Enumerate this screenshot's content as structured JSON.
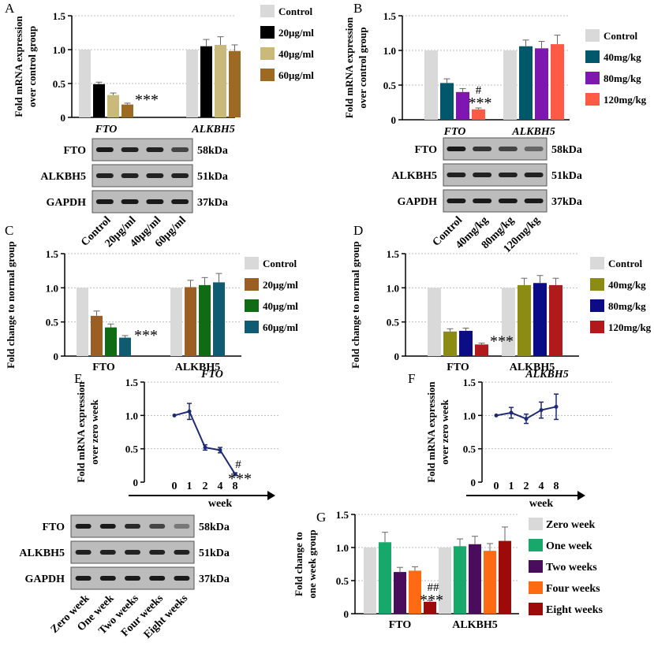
{
  "panel_letters": [
    "A",
    "B",
    "C",
    "D",
    "E",
    "F",
    "G"
  ],
  "colors": {
    "control": "#d9d9d9",
    "black": "#000000",
    "khaki": "#c9b97a",
    "brown_a": "#9c6a22",
    "teal": "#00586a",
    "purple": "#7f16b0",
    "salmon": "#ff5a45",
    "brown_c": "#9b5f23",
    "green_c": "#0f6b14",
    "teal_c": "#0e5b72",
    "olive": "#8c8c14",
    "navy": "#0c0c84",
    "darkred": "#b11a1a",
    "line_blue": "#1d2a73",
    "green_g": "#17a86b",
    "purple_g": "#4a0d5e",
    "orange_g": "#ff6a12",
    "red_g": "#9c0a0a"
  },
  "chart_data": [
    {
      "panel": "A",
      "type": "bar",
      "ylabel_lines": [
        "Fold mRNA expression",
        "over control group"
      ],
      "ylim": [
        0,
        1.5
      ],
      "yticks": [
        "0",
        "0.5",
        "1.0",
        "1.5"
      ],
      "categories": [
        "FTO",
        "ALKBH5"
      ],
      "series": [
        {
          "name": "Control",
          "values": [
            1.0,
            1.0
          ],
          "errors": [
            0,
            0
          ]
        },
        {
          "name": "20μg/ml",
          "values": [
            0.49,
            1.05
          ],
          "errors": [
            0.03,
            0.1
          ]
        },
        {
          "name": "40μg/ml",
          "values": [
            0.33,
            1.07
          ],
          "errors": [
            0.03,
            0.12
          ]
        },
        {
          "name": "60μg/ml",
          "values": [
            0.19,
            0.98
          ],
          "errors": [
            0.02,
            0.09
          ]
        }
      ],
      "annotations": [
        "***"
      ],
      "blot": {
        "rows": [
          "FTO",
          "ALKBH5",
          "GAPDH"
        ],
        "sizes": [
          "58kDa",
          "51kDa",
          "37kDa"
        ],
        "lanes": [
          "Control",
          "20μg/ml",
          "40μg/ml",
          "60μg/ml"
        ]
      }
    },
    {
      "panel": "B",
      "type": "bar",
      "ylabel_lines": [
        "Fold mRNA expression",
        "over control group"
      ],
      "ylim": [
        0,
        1.5
      ],
      "yticks": [
        "0",
        "0.5",
        "1.0",
        "1.5"
      ],
      "categories": [
        "FTO",
        "ALKBH5"
      ],
      "series": [
        {
          "name": "Control",
          "values": [
            1.0,
            1.0
          ],
          "errors": [
            0,
            0
          ]
        },
        {
          "name": "40mg/kg",
          "values": [
            0.53,
            1.06
          ],
          "errors": [
            0.06,
            0.09
          ]
        },
        {
          "name": "80mg/kg",
          "values": [
            0.4,
            1.03
          ],
          "errors": [
            0.05,
            0.1
          ]
        },
        {
          "name": "120mg/kg",
          "values": [
            0.15,
            1.09
          ],
          "errors": [
            0.02,
            0.13
          ]
        }
      ],
      "annotations": [
        "#",
        "***"
      ],
      "blot": {
        "rows": [
          "FTO",
          "ALKBH5",
          "GAPDH"
        ],
        "sizes": [
          "58kDa",
          "51kDa",
          "37kDa"
        ],
        "lanes": [
          "Control",
          "40mg/kg",
          "80mg/kg",
          "120mg/kg"
        ]
      }
    },
    {
      "panel": "C",
      "type": "bar",
      "ylabel_lines": [
        "Fold change to normal group"
      ],
      "ylim": [
        0,
        1.5
      ],
      "yticks": [
        "0",
        "0.5",
        "1.0",
        "1.5"
      ],
      "categories": [
        "FTO",
        "ALKBH5"
      ],
      "series": [
        {
          "name": "Control",
          "values": [
            1.0,
            1.0
          ],
          "errors": [
            0,
            0
          ]
        },
        {
          "name": "20μg/ml",
          "values": [
            0.59,
            1.01
          ],
          "errors": [
            0.07,
            0.1
          ]
        },
        {
          "name": "40μg/ml",
          "values": [
            0.42,
            1.04
          ],
          "errors": [
            0.05,
            0.11
          ]
        },
        {
          "name": "60μg/ml",
          "values": [
            0.27,
            1.08
          ],
          "errors": [
            0.03,
            0.13
          ]
        }
      ],
      "annotations": [
        "***"
      ]
    },
    {
      "panel": "D",
      "type": "bar",
      "ylabel_lines": [
        "Fold change to normal group"
      ],
      "ylim": [
        0,
        1.5
      ],
      "yticks": [
        "0",
        "0.5",
        "1.0",
        "1.5"
      ],
      "categories": [
        "FTO",
        "ALKBH5"
      ],
      "series": [
        {
          "name": "Control",
          "values": [
            1.0,
            1.0
          ],
          "errors": [
            0,
            0
          ]
        },
        {
          "name": "40mg/kg",
          "values": [
            0.36,
            1.04
          ],
          "errors": [
            0.04,
            0.1
          ]
        },
        {
          "name": "80mg/kg",
          "values": [
            0.37,
            1.07
          ],
          "errors": [
            0.04,
            0.11
          ]
        },
        {
          "name": "120mg/kg",
          "values": [
            0.17,
            1.04
          ],
          "errors": [
            0.02,
            0.1
          ]
        }
      ],
      "annotations": [
        "***"
      ]
    },
    {
      "panel": "E",
      "type": "line",
      "title": "FTO",
      "ylabel_lines": [
        "Fold mRNA expression",
        "over zero week"
      ],
      "xlabel": "week",
      "x": [
        0,
        1,
        2,
        4,
        8
      ],
      "values": [
        1.0,
        1.06,
        0.52,
        0.48,
        0.12
      ],
      "errors": [
        0,
        0.12,
        0.04,
        0.04,
        0.02
      ],
      "ylim": [
        0,
        1.5
      ],
      "yticks": [
        "0",
        "0.5",
        "1.0",
        "1.5"
      ],
      "annotations": [
        "#",
        "***"
      ],
      "blot": {
        "rows": [
          "FTO",
          "ALKBH5",
          "GAPDH"
        ],
        "sizes": [
          "58kDa",
          "51kDa",
          "37kDa"
        ],
        "lanes": [
          "Zero week",
          "One week",
          "Two weeks",
          "Four weeks",
          "Eight weeks"
        ]
      }
    },
    {
      "panel": "F",
      "type": "line",
      "title": "ALKBH5",
      "ylabel_lines": [
        "Fold mRNA expression",
        "over zero week"
      ],
      "xlabel": "week",
      "x": [
        0,
        1,
        2,
        4,
        8
      ],
      "values": [
        1.0,
        1.04,
        0.95,
        1.08,
        1.13
      ],
      "errors": [
        0,
        0.08,
        0.07,
        0.12,
        0.19
      ],
      "ylim": [
        0,
        1.5
      ],
      "yticks": [
        "0",
        "0.5",
        "1.0",
        "1.5"
      ]
    },
    {
      "panel": "G",
      "type": "bar",
      "ylabel_lines": [
        "Fold change to",
        "one week group"
      ],
      "ylim": [
        0,
        1.5
      ],
      "yticks": [
        "0",
        "0.5",
        "1.0",
        "1.5"
      ],
      "categories": [
        "FTO",
        "ALKBH5"
      ],
      "series": [
        {
          "name": "Zero week",
          "values": [
            1.0,
            1.0
          ],
          "errors": [
            0,
            0
          ]
        },
        {
          "name": "One week",
          "values": [
            1.08,
            1.02
          ],
          "errors": [
            0.15,
            0.11
          ]
        },
        {
          "name": "Two weeks",
          "values": [
            0.63,
            1.05
          ],
          "errors": [
            0.07,
            0.12
          ]
        },
        {
          "name": "Four weeks",
          "values": [
            0.65,
            0.95
          ],
          "errors": [
            0.06,
            0.11
          ]
        },
        {
          "name": "Eight weeks",
          "values": [
            0.18,
            1.1
          ],
          "errors": [
            0.02,
            0.21
          ]
        }
      ],
      "annotations": [
        "##",
        "***"
      ]
    }
  ]
}
